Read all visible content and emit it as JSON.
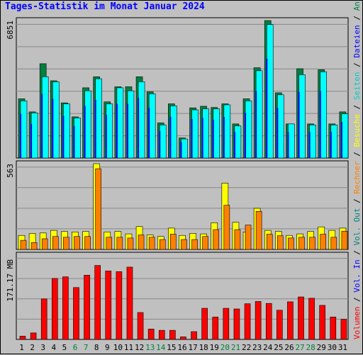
{
  "title": "Tages-Statistik im Monat Januar 2024",
  "chart_data": [
    {
      "type": "bar",
      "name_label": "Anfragen / Dateien / Seiten",
      "ylabel": "6851",
      "ylim": [
        0,
        6851
      ],
      "grid": true,
      "categories": [
        "1",
        "2",
        "3",
        "4",
        "5",
        "6",
        "7",
        "8",
        "9",
        "10",
        "11",
        "12",
        "13",
        "14",
        "15",
        "16",
        "17",
        "18",
        "19",
        "20",
        "21",
        "22",
        "23",
        "24",
        "25",
        "26",
        "27",
        "28",
        "29",
        "30",
        "31"
      ],
      "weekend_days": [
        "6",
        "7",
        "13",
        "14",
        "20",
        "21",
        "27",
        "28"
      ],
      "series": [
        {
          "name": "Anfragen",
          "color": "#008040",
          "values": [
            2950,
            2300,
            4700,
            3850,
            2750,
            2050,
            3500,
            4050,
            2800,
            3550,
            3550,
            4050,
            3300,
            1750,
            2700,
            1000,
            2500,
            2580,
            2520,
            2700,
            1700,
            2950,
            4500,
            6851,
            3250,
            1700,
            4450,
            1700,
            4400,
            1700,
            2300
          ]
        },
        {
          "name": "Dateien",
          "color": "#0000FF",
          "values": [
            2200,
            1700,
            3200,
            2950,
            2100,
            1600,
            2600,
            2900,
            2150,
            2700,
            2700,
            3000,
            2500,
            1350,
            2050,
            800,
            1950,
            2000,
            1900,
            2050,
            1300,
            2250,
            3350,
            4950,
            2500,
            1300,
            3300,
            1300,
            3350,
            1300,
            1800
          ]
        },
        {
          "name": "Seiten",
          "color": "#00FFFF",
          "values": [
            2850,
            2250,
            4050,
            3800,
            2700,
            2000,
            3350,
            3950,
            2700,
            3500,
            3350,
            3800,
            3200,
            1650,
            2600,
            950,
            2400,
            2450,
            2450,
            2650,
            1600,
            2850,
            4350,
            6650,
            3150,
            1700,
            4150,
            1650,
            4300,
            1650,
            2200
          ]
        }
      ]
    },
    {
      "type": "bar",
      "ylabel": "563",
      "ylim": [
        0,
        563
      ],
      "grid": true,
      "series": [
        {
          "name": "Besuche",
          "color": "#FFFF00",
          "values": [
            92,
            105,
            108,
            125,
            118,
            115,
            118,
            563,
            115,
            118,
            102,
            150,
            95,
            85,
            140,
            92,
            105,
            102,
            175,
            435,
            178,
            115,
            270,
            125,
            118,
            92,
            102,
            118,
            148,
            125,
            140
          ]
        },
        {
          "name": "Rechner",
          "color": "#FF8000",
          "values": [
            60,
            45,
            70,
            85,
            80,
            85,
            85,
            530,
            80,
            80,
            75,
            95,
            80,
            65,
            100,
            65,
            65,
            85,
            130,
            290,
            130,
            160,
            250,
            100,
            90,
            75,
            80,
            80,
            100,
            80,
            120
          ]
        }
      ]
    },
    {
      "type": "bar",
      "ylabel": "171.17 MB",
      "ylim": [
        0,
        260
      ],
      "ytick": 171.17,
      "grid": true,
      "series": [
        {
          "name": "Volumen",
          "color": "#FF0000",
          "values": [
            10,
            20,
            125,
            188,
            193,
            160,
            198,
            228,
            211,
            209,
            223,
            83,
            32,
            28,
            28,
            8,
            24,
            96,
            69,
            96,
            94,
            110,
            117,
            111,
            90,
            116,
            131,
            127,
            105,
            69,
            62
          ]
        }
      ]
    }
  ],
  "right_label": {
    "parts": [
      {
        "text": "Volumen",
        "color": "#FF0000"
      },
      {
        "text": " / ",
        "color": "#000000"
      },
      {
        "text": "Vol. In",
        "color": "#0000FF"
      },
      {
        "text": " / ",
        "color": "#000000"
      },
      {
        "text": "Vol. Out",
        "color": "#008080"
      },
      {
        "text": " / ",
        "color": "#000000"
      },
      {
        "text": "Rechner",
        "color": "#FF8000"
      },
      {
        "text": " / ",
        "color": "#000000"
      },
      {
        "text": "Besuche",
        "color": "#FFFF00"
      },
      {
        "text": " / ",
        "color": "#000000"
      },
      {
        "text": "Seiten",
        "color": "#00CCCC"
      },
      {
        "text": " / ",
        "color": "#000000"
      },
      {
        "text": "Dateien",
        "color": "#0000FF"
      },
      {
        "text": " / ",
        "color": "#000000"
      },
      {
        "text": "Anfragen",
        "color": "#008040"
      }
    ]
  },
  "colors": {
    "background": "#C0C0C0",
    "plot_bg": "#C0C0C0",
    "weekday_label": "#000000",
    "weekend_label": "#008040",
    "title": "#0000FF"
  }
}
